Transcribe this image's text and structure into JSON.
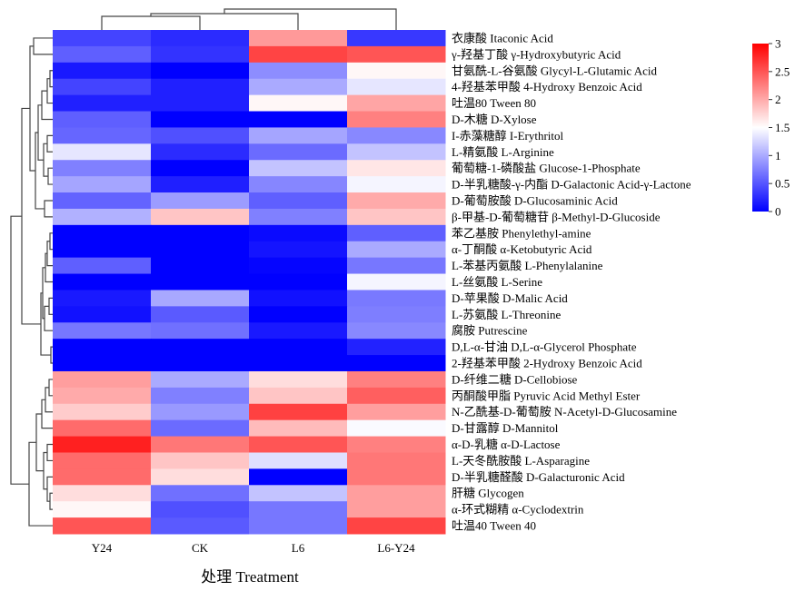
{
  "chart_data": {
    "type": "heatmap",
    "xlabel": "处理  Treatment",
    "columns": [
      "Y24",
      "CK",
      "L6",
      "L6-Y24"
    ],
    "rows": [
      "衣康酸 Itaconic Acid",
      "γ-羟基丁酸 γ-Hydroxybutyric Acid",
      "甘氨酰-L-谷氨酸 Glycyl-L-Glutamic Acid",
      "4-羟基苯甲酸 4-Hydroxy Benzoic Acid",
      "吐温80 Tween 80",
      "D-木糖 D-Xylose",
      "I-赤藻糖醇 I-Erythritol",
      "L-精氨酸 L-Arginine",
      "葡萄糖-1-磷酸盐 Glucose-1-Phosphate",
      "D-半乳糖酸-γ-内酯 D-Galactonic Acid-γ-Lactone",
      "D-葡萄胺酸 D-Glucosaminic Acid",
      "β-甲基-D-葡萄糖苷 β-Methyl-D-Glucoside",
      "苯乙基胺 Phenylethyl-amine",
      "α-丁酮酸 α-Ketobutyric Acid",
      "L-苯基丙氨酸 L-Phenylalanine",
      "L-丝氨酸 L-Serine",
      "D-苹果酸 D-Malic Acid",
      "L-苏氨酸 L-Threonine",
      "腐胺 Putrescine",
      "D,L-α-甘油 D,L-α-Glycerol Phosphate",
      "2-羟基苯甲酸 2-Hydroxy Benzoic Acid",
      "D-纤维二糖 D-Cellobiose",
      "丙酮酸甲脂 Pyruvic Acid Methyl Ester",
      "N-乙酰基-D-葡萄胺 N-Acetyl-D-Glucosamine",
      "D-甘露醇 D-Mannitol",
      "α-D-乳糖 α-D-Lactose",
      "L-天冬酰胺酸 L-Asparagine",
      "D-半乳糖醛酸 D-Galacturonic Acid",
      "肝糖 Glycogen",
      "α-环式糊精 α-Cyclodextrin",
      "吐温40 Tween 40"
    ],
    "values": [
      [
        0.4,
        0.25,
        2.1,
        0.33
      ],
      [
        0.56,
        0.3,
        2.6,
        2.5
      ],
      [
        0.15,
        0.0,
        0.83,
        1.55
      ],
      [
        0.4,
        0.19,
        1.0,
        1.35
      ],
      [
        0.19,
        0.19,
        1.55,
        2.03
      ],
      [
        0.56,
        0.0,
        0.0,
        2.25
      ],
      [
        0.6,
        0.47,
        0.97,
        0.8
      ],
      [
        1.35,
        0.25,
        0.63,
        1.15
      ],
      [
        0.75,
        0.0,
        1.15,
        1.65
      ],
      [
        0.97,
        0.18,
        0.79,
        1.44
      ],
      [
        0.58,
        0.92,
        0.56,
        2.0
      ],
      [
        1.04,
        1.84,
        0.75,
        1.84
      ],
      [
        0.0,
        0.0,
        0.06,
        0.56
      ],
      [
        0.0,
        0.0,
        0.12,
        1.0
      ],
      [
        0.56,
        0.0,
        0.03,
        0.7
      ],
      [
        0.0,
        0.0,
        0.0,
        1.44
      ],
      [
        0.15,
        0.99,
        0.1,
        0.71
      ],
      [
        0.1,
        0.53,
        0.0,
        0.74
      ],
      [
        0.7,
        0.66,
        0.15,
        0.8
      ],
      [
        0.0,
        0.0,
        0.0,
        0.2
      ],
      [
        0.0,
        0.0,
        0.0,
        0.0
      ],
      [
        2.07,
        1.0,
        1.7,
        2.25
      ],
      [
        2.0,
        0.75,
        1.84,
        2.44
      ],
      [
        1.8,
        0.9,
        2.62,
        2.07
      ],
      [
        2.37,
        0.63,
        1.9,
        1.47
      ],
      [
        2.81,
        2.3,
        2.5,
        2.25
      ],
      [
        2.37,
        1.84,
        1.32,
        2.3
      ],
      [
        2.37,
        1.7,
        0.0,
        2.3
      ],
      [
        1.7,
        0.66,
        1.15,
        2.07
      ],
      [
        1.55,
        0.47,
        0.7,
        2.07
      ],
      [
        2.5,
        0.53,
        0.7,
        2.6
      ]
    ],
    "colorbar": {
      "range": [
        0,
        3
      ],
      "ticks": [
        "0",
        "0.5",
        "1",
        "1.5",
        "2",
        "2.5",
        "3"
      ],
      "colors": {
        "low": "#0000ff",
        "mid": "#ffffff",
        "high": "#ff0000"
      }
    },
    "row_dendrogram": true,
    "column_dendrogram": true
  }
}
